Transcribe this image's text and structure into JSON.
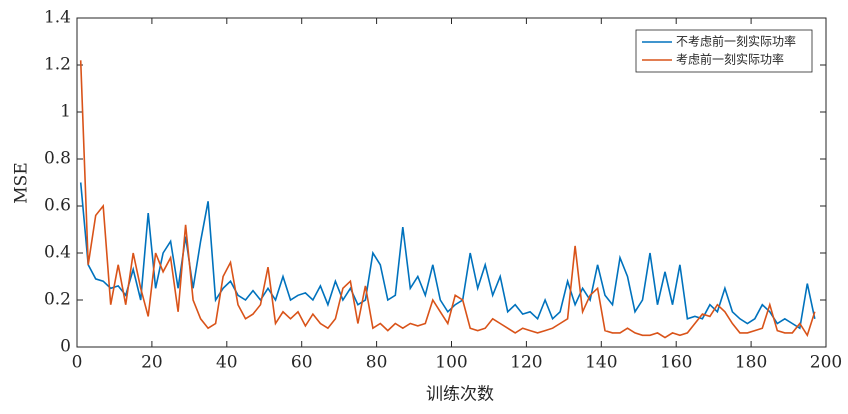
{
  "chart_data": {
    "type": "line",
    "x_label": "训练次数",
    "y_label": "MSE",
    "xlim": [
      0,
      200
    ],
    "ylim": [
      0,
      1.4
    ],
    "xticks": [
      0,
      20,
      40,
      60,
      80,
      100,
      120,
      140,
      160,
      180,
      200
    ],
    "yticks": [
      0,
      0.2,
      0.4,
      0.6,
      0.8,
      1,
      1.2,
      1.4
    ],
    "legend": "upper right",
    "x": [
      1,
      3,
      5,
      7,
      9,
      11,
      13,
      15,
      17,
      19,
      21,
      23,
      25,
      27,
      29,
      31,
      33,
      35,
      37,
      39,
      41,
      43,
      45,
      47,
      49,
      51,
      53,
      55,
      57,
      59,
      61,
      63,
      65,
      67,
      69,
      71,
      73,
      75,
      77,
      79,
      81,
      83,
      85,
      87,
      89,
      91,
      93,
      95,
      97,
      99,
      101,
      103,
      105,
      107,
      109,
      111,
      113,
      115,
      117,
      119,
      121,
      123,
      125,
      127,
      129,
      131,
      133,
      135,
      137,
      139,
      141,
      143,
      145,
      147,
      149,
      151,
      153,
      155,
      157,
      159,
      161,
      163,
      165,
      167,
      169,
      171,
      173,
      175,
      177,
      179,
      181,
      183,
      185,
      187,
      189,
      191,
      193,
      195,
      197
    ],
    "series": [
      {
        "name": "不考虑前一刻实际功率",
        "color": "#0072BD",
        "values": [
          0.7,
          0.35,
          0.29,
          0.28,
          0.25,
          0.26,
          0.22,
          0.33,
          0.2,
          0.57,
          0.25,
          0.4,
          0.45,
          0.25,
          0.47,
          0.25,
          0.45,
          0.62,
          0.2,
          0.25,
          0.28,
          0.22,
          0.2,
          0.24,
          0.2,
          0.25,
          0.2,
          0.3,
          0.2,
          0.22,
          0.23,
          0.2,
          0.26,
          0.18,
          0.28,
          0.2,
          0.25,
          0.18,
          0.2,
          0.4,
          0.35,
          0.2,
          0.22,
          0.51,
          0.25,
          0.3,
          0.22,
          0.35,
          0.2,
          0.15,
          0.18,
          0.2,
          0.4,
          0.25,
          0.35,
          0.22,
          0.3,
          0.15,
          0.18,
          0.14,
          0.15,
          0.12,
          0.2,
          0.12,
          0.15,
          0.28,
          0.18,
          0.25,
          0.2,
          0.35,
          0.22,
          0.18,
          0.38,
          0.3,
          0.15,
          0.2,
          0.4,
          0.18,
          0.32,
          0.18,
          0.35,
          0.12,
          0.13,
          0.12,
          0.18,
          0.15,
          0.25,
          0.15,
          0.12,
          0.1,
          0.12,
          0.18,
          0.15,
          0.1,
          0.12,
          0.1,
          0.08,
          0.27,
          0.12
        ]
      },
      {
        "name": "考虑前一刻实际功率",
        "color": "#D95319",
        "values": [
          1.22,
          0.35,
          0.56,
          0.6,
          0.18,
          0.35,
          0.18,
          0.4,
          0.25,
          0.13,
          0.4,
          0.32,
          0.38,
          0.15,
          0.52,
          0.2,
          0.12,
          0.08,
          0.1,
          0.3,
          0.36,
          0.18,
          0.12,
          0.14,
          0.18,
          0.34,
          0.1,
          0.15,
          0.12,
          0.15,
          0.09,
          0.14,
          0.1,
          0.08,
          0.12,
          0.25,
          0.28,
          0.1,
          0.26,
          0.08,
          0.1,
          0.07,
          0.1,
          0.08,
          0.1,
          0.09,
          0.1,
          0.2,
          0.15,
          0.1,
          0.22,
          0.2,
          0.08,
          0.07,
          0.08,
          0.12,
          0.1,
          0.08,
          0.06,
          0.08,
          0.07,
          0.06,
          0.07,
          0.08,
          0.1,
          0.12,
          0.43,
          0.15,
          0.22,
          0.25,
          0.07,
          0.06,
          0.06,
          0.08,
          0.06,
          0.05,
          0.05,
          0.06,
          0.04,
          0.06,
          0.05,
          0.06,
          0.1,
          0.14,
          0.13,
          0.18,
          0.15,
          0.1,
          0.06,
          0.06,
          0.07,
          0.08,
          0.18,
          0.07,
          0.06,
          0.06,
          0.1,
          0.05,
          0.15
        ]
      }
    ]
  }
}
